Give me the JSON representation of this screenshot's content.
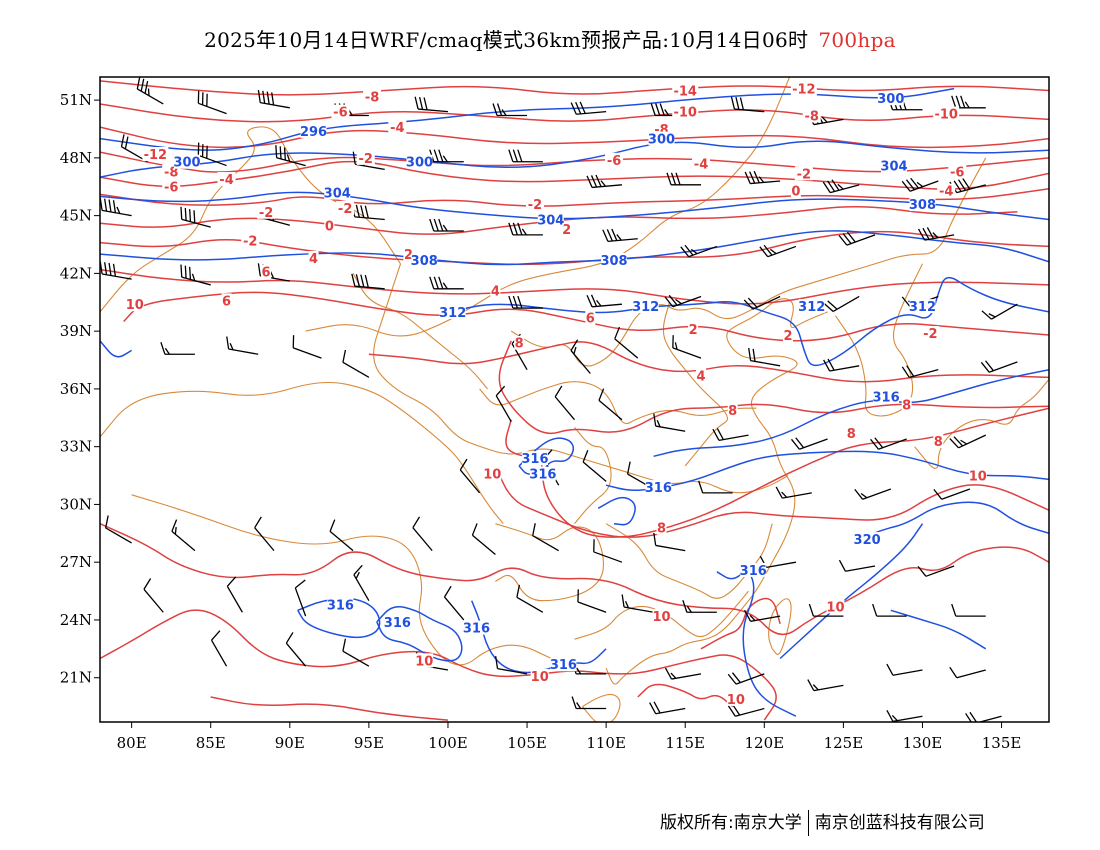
{
  "title": {
    "main": "2025年10月14日WRF/cmaq模式36km预报产品:10月14日06时",
    "level": "700hpa"
  },
  "colors": {
    "temperature": "#e04040",
    "height": "#2050e0",
    "border": "#d88a3a",
    "wind": "#000000",
    "level_text": "#e03030"
  },
  "axes": {
    "lon_labels": [
      "80E",
      "85E",
      "90E",
      "95E",
      "100E",
      "105E",
      "110E",
      "115E",
      "120E",
      "125E",
      "130E",
      "135E"
    ],
    "lon_values": [
      80,
      85,
      90,
      95,
      100,
      105,
      110,
      115,
      120,
      125,
      130,
      135
    ],
    "lat_labels": [
      "51N",
      "48N",
      "45N",
      "42N",
      "39N",
      "36N",
      "33N",
      "30N",
      "27N",
      "24N",
      "21N"
    ],
    "lat_values": [
      51,
      48,
      45,
      42,
      39,
      36,
      33,
      30,
      27,
      24,
      21
    ],
    "lon_range": [
      78,
      138
    ],
    "lat_range": [
      18.7,
      52.2
    ]
  },
  "temp_labels": [
    {
      "t": "-14",
      "lon": 115.0,
      "lat": 51.5
    },
    {
      "t": "-12",
      "lon": 122.5,
      "lat": 51.6
    },
    {
      "t": "-10",
      "lon": 115.0,
      "lat": 50.4
    },
    {
      "t": "-10",
      "lon": 131.5,
      "lat": 50.3
    },
    {
      "t": "-8",
      "lon": 95.2,
      "lat": 51.2
    },
    {
      "t": "-8",
      "lon": 123.0,
      "lat": 50.2
    },
    {
      "t": "-8",
      "lon": 113.5,
      "lat": 49.5
    },
    {
      "t": "-6",
      "lon": 93.2,
      "lat": 50.4
    },
    {
      "t": "-6",
      "lon": 110.5,
      "lat": 47.9
    },
    {
      "t": "-6",
      "lon": 132.2,
      "lat": 47.3
    },
    {
      "t": "-4",
      "lon": 96.8,
      "lat": 49.6
    },
    {
      "t": "-4",
      "lon": 86.0,
      "lat": 46.9
    },
    {
      "t": "-4",
      "lon": 116.0,
      "lat": 47.7
    },
    {
      "t": "-4",
      "lon": 131.5,
      "lat": 46.3
    },
    {
      "t": "-2",
      "lon": 94.8,
      "lat": 48.0
    },
    {
      "t": "-2",
      "lon": 93.5,
      "lat": 45.4
    },
    {
      "t": "-2",
      "lon": 105.5,
      "lat": 45.6
    },
    {
      "t": "-2",
      "lon": 122.5,
      "lat": 47.2
    },
    {
      "t": "-12",
      "lon": 81.5,
      "lat": 48.2
    },
    {
      "t": "-8",
      "lon": 82.5,
      "lat": 47.3
    },
    {
      "t": "-6",
      "lon": 82.5,
      "lat": 46.5
    },
    {
      "t": "-2",
      "lon": 88.5,
      "lat": 45.2
    },
    {
      "t": "-2",
      "lon": 87.5,
      "lat": 43.7
    },
    {
      "t": "0",
      "lon": 92.5,
      "lat": 44.5
    },
    {
      "t": "0",
      "lon": 122.0,
      "lat": 46.3
    },
    {
      "t": "2",
      "lon": 97.5,
      "lat": 43.0
    },
    {
      "t": "2",
      "lon": 107.5,
      "lat": 44.3
    },
    {
      "t": "2",
      "lon": 115.5,
      "lat": 39.1
    },
    {
      "t": "4",
      "lon": 91.5,
      "lat": 42.8
    },
    {
      "t": "4",
      "lon": 103.0,
      "lat": 41.1
    },
    {
      "t": "4",
      "lon": 116.0,
      "lat": 36.7
    },
    {
      "t": "6",
      "lon": 88.5,
      "lat": 42.1
    },
    {
      "t": "6",
      "lon": 86.0,
      "lat": 40.6
    },
    {
      "t": "6",
      "lon": 109.0,
      "lat": 39.7
    },
    {
      "t": "8",
      "lon": 104.5,
      "lat": 38.4
    },
    {
      "t": "8",
      "lon": 118.0,
      "lat": 34.9
    },
    {
      "t": "8",
      "lon": 125.5,
      "lat": 33.7
    },
    {
      "t": "8",
      "lon": 129.0,
      "lat": 35.2
    },
    {
      "t": "8",
      "lon": 131.0,
      "lat": 33.3
    },
    {
      "t": "8",
      "lon": 113.5,
      "lat": 28.8
    },
    {
      "t": "10",
      "lon": 80.2,
      "lat": 40.4
    },
    {
      "t": "10",
      "lon": 102.8,
      "lat": 31.6
    },
    {
      "t": "10",
      "lon": 133.5,
      "lat": 31.5
    },
    {
      "t": "10",
      "lon": 113.5,
      "lat": 24.2
    },
    {
      "t": "10",
      "lon": 124.5,
      "lat": 24.7
    },
    {
      "t": "10",
      "lon": 98.5,
      "lat": 21.9
    },
    {
      "t": "10",
      "lon": 105.8,
      "lat": 21.1
    },
    {
      "t": "10",
      "lon": 118.2,
      "lat": 19.9
    },
    {
      "t": "-2",
      "lon": 130.5,
      "lat": 38.9
    },
    {
      "t": "2",
      "lon": 121.5,
      "lat": 38.8
    }
  ],
  "height_labels": [
    {
      "t": "296",
      "lon": 91.5,
      "lat": 49.4
    },
    {
      "t": "300",
      "lon": 83.5,
      "lat": 47.8
    },
    {
      "t": "300",
      "lon": 98.2,
      "lat": 47.8
    },
    {
      "t": "300",
      "lon": 113.5,
      "lat": 49.0
    },
    {
      "t": "300",
      "lon": 128.0,
      "lat": 51.1
    },
    {
      "t": "304",
      "lon": 93.0,
      "lat": 46.2
    },
    {
      "t": "304",
      "lon": 106.5,
      "lat": 44.8
    },
    {
      "t": "304",
      "lon": 128.2,
      "lat": 47.6
    },
    {
      "t": "308",
      "lon": 98.5,
      "lat": 42.7
    },
    {
      "t": "308",
      "lon": 110.5,
      "lat": 42.7
    },
    {
      "t": "308",
      "lon": 130.0,
      "lat": 45.6
    },
    {
      "t": "312",
      "lon": 100.3,
      "lat": 40.0
    },
    {
      "t": "312",
      "lon": 112.5,
      "lat": 40.3
    },
    {
      "t": "312",
      "lon": 123.0,
      "lat": 40.3
    },
    {
      "t": "312",
      "lon": 130.0,
      "lat": 40.3
    },
    {
      "t": "316",
      "lon": 127.7,
      "lat": 35.6
    },
    {
      "t": "316",
      "lon": 105.5,
      "lat": 32.4
    },
    {
      "t": "316",
      "lon": 106.0,
      "lat": 31.6
    },
    {
      "t": "316",
      "lon": 113.3,
      "lat": 30.9
    },
    {
      "t": "316",
      "lon": 119.3,
      "lat": 26.6
    },
    {
      "t": "316",
      "lon": 93.2,
      "lat": 24.8
    },
    {
      "t": "316",
      "lon": 96.8,
      "lat": 23.9
    },
    {
      "t": "316",
      "lon": 101.8,
      "lat": 23.6
    },
    {
      "t": "316",
      "lon": 107.3,
      "lat": 21.7
    },
    {
      "t": "320",
      "lon": 126.5,
      "lat": 28.2
    }
  ],
  "wind_barbs": [
    {
      "lon": 82,
      "lat": 50.8,
      "dir": 300,
      "spd": 35
    },
    {
      "lon": 86,
      "lat": 50.3,
      "dir": 290,
      "spd": 30
    },
    {
      "lon": 90,
      "lat": 50.6,
      "dir": 280,
      "spd": 40
    },
    {
      "lon": 95,
      "lat": 50.2,
      "dir": 270,
      "spd": 35
    },
    {
      "lon": 100,
      "lat": 50.4,
      "dir": 275,
      "spd": 30
    },
    {
      "lon": 105,
      "lat": 50.2,
      "dir": 270,
      "spd": 25
    },
    {
      "lon": 110,
      "lat": 50.4,
      "dir": 265,
      "spd": 30
    },
    {
      "lon": 115,
      "lat": 50.2,
      "dir": 270,
      "spd": 35
    },
    {
      "lon": 120,
      "lat": 50.4,
      "dir": 275,
      "spd": 30
    },
    {
      "lon": 125,
      "lat": 50.0,
      "dir": 260,
      "spd": 35
    },
    {
      "lon": 130,
      "lat": 50.5,
      "dir": 270,
      "spd": 40
    },
    {
      "lon": 134,
      "lat": 50.6,
      "dir": 270,
      "spd": 35
    },
    {
      "lon": 81,
      "lat": 47.8,
      "dir": 300,
      "spd": 20
    },
    {
      "lon": 86,
      "lat": 47.6,
      "dir": 290,
      "spd": 30
    },
    {
      "lon": 91,
      "lat": 47.6,
      "dir": 285,
      "spd": 35
    },
    {
      "lon": 96,
      "lat": 47.4,
      "dir": 280,
      "spd": 30
    },
    {
      "lon": 101,
      "lat": 47.8,
      "dir": 270,
      "spd": 35
    },
    {
      "lon": 106,
      "lat": 47.8,
      "dir": 270,
      "spd": 30
    },
    {
      "lon": 111,
      "lat": 46.6,
      "dir": 265,
      "spd": 35
    },
    {
      "lon": 116,
      "lat": 46.6,
      "dir": 270,
      "spd": 30
    },
    {
      "lon": 121,
      "lat": 46.8,
      "dir": 265,
      "spd": 35
    },
    {
      "lon": 126,
      "lat": 46.6,
      "dir": 255,
      "spd": 35
    },
    {
      "lon": 131,
      "lat": 46.8,
      "dir": 250,
      "spd": 35
    },
    {
      "lon": 134,
      "lat": 46.6,
      "dir": 255,
      "spd": 40
    },
    {
      "lon": 80,
      "lat": 45.0,
      "dir": 280,
      "spd": 45
    },
    {
      "lon": 85,
      "lat": 44.4,
      "dir": 285,
      "spd": 40
    },
    {
      "lon": 90,
      "lat": 44.5,
      "dir": 285,
      "spd": 35
    },
    {
      "lon": 96,
      "lat": 44.8,
      "dir": 275,
      "spd": 40
    },
    {
      "lon": 101,
      "lat": 44.2,
      "dir": 270,
      "spd": 35
    },
    {
      "lon": 106,
      "lat": 44.0,
      "dir": 270,
      "spd": 35
    },
    {
      "lon": 112,
      "lat": 43.8,
      "dir": 265,
      "spd": 35
    },
    {
      "lon": 117,
      "lat": 43.4,
      "dir": 250,
      "spd": 25
    },
    {
      "lon": 122,
      "lat": 43.4,
      "dir": 250,
      "spd": 25
    },
    {
      "lon": 127,
      "lat": 44.0,
      "dir": 250,
      "spd": 30
    },
    {
      "lon": 132,
      "lat": 44.0,
      "dir": 260,
      "spd": 35
    },
    {
      "lon": 80,
      "lat": 41.7,
      "dir": 280,
      "spd": 40
    },
    {
      "lon": 85,
      "lat": 41.4,
      "dir": 285,
      "spd": 35
    },
    {
      "lon": 90,
      "lat": 41.6,
      "dir": 280,
      "spd": 35
    },
    {
      "lon": 96,
      "lat": 41.2,
      "dir": 275,
      "spd": 40
    },
    {
      "lon": 101,
      "lat": 41.2,
      "dir": 270,
      "spd": 35
    },
    {
      "lon": 106,
      "lat": 40.2,
      "dir": 270,
      "spd": 30
    },
    {
      "lon": 111,
      "lat": 40.4,
      "dir": 265,
      "spd": 25
    },
    {
      "lon": 116,
      "lat": 40.8,
      "dir": 250,
      "spd": 25
    },
    {
      "lon": 121,
      "lat": 40.8,
      "dir": 245,
      "spd": 20
    },
    {
      "lon": 126,
      "lat": 40.8,
      "dir": 240,
      "spd": 20
    },
    {
      "lon": 131,
      "lat": 40.8,
      "dir": 250,
      "spd": 15
    },
    {
      "lon": 136,
      "lat": 40.4,
      "dir": 240,
      "spd": 15
    },
    {
      "lon": 84,
      "lat": 37.8,
      "dir": 270,
      "spd": 15
    },
    {
      "lon": 88,
      "lat": 37.8,
      "dir": 280,
      "spd": 15
    },
    {
      "lon": 92,
      "lat": 37.6,
      "dir": 290,
      "spd": 10
    },
    {
      "lon": 95,
      "lat": 36.6,
      "dir": 300,
      "spd": 10
    },
    {
      "lon": 105,
      "lat": 37.0,
      "dir": 330,
      "spd": 15
    },
    {
      "lon": 109,
      "lat": 36.8,
      "dir": 320,
      "spd": 15
    },
    {
      "lon": 112,
      "lat": 37.6,
      "dir": 310,
      "spd": 10
    },
    {
      "lon": 116,
      "lat": 37.6,
      "dir": 290,
      "spd": 15
    },
    {
      "lon": 121,
      "lat": 37.2,
      "dir": 280,
      "spd": 20
    },
    {
      "lon": 126,
      "lat": 37.2,
      "dir": 260,
      "spd": 20
    },
    {
      "lon": 131,
      "lat": 37.0,
      "dir": 255,
      "spd": 20
    },
    {
      "lon": 136,
      "lat": 37.4,
      "dir": 250,
      "spd": 20
    },
    {
      "lon": 104,
      "lat": 34.3,
      "dir": 330,
      "spd": 10
    },
    {
      "lon": 108,
      "lat": 34.4,
      "dir": 320,
      "spd": 10
    },
    {
      "lon": 111,
      "lat": 34.4,
      "dir": 310,
      "spd": 10
    },
    {
      "lon": 115,
      "lat": 33.8,
      "dir": 280,
      "spd": 15
    },
    {
      "lon": 119,
      "lat": 33.6,
      "dir": 260,
      "spd": 20
    },
    {
      "lon": 124,
      "lat": 33.4,
      "dir": 250,
      "spd": 20
    },
    {
      "lon": 129,
      "lat": 33.4,
      "dir": 250,
      "spd": 20
    },
    {
      "lon": 134,
      "lat": 33.6,
      "dir": 245,
      "spd": 25
    },
    {
      "lon": 102,
      "lat": 30.6,
      "dir": 320,
      "spd": 10
    },
    {
      "lon": 107,
      "lat": 31.0,
      "dir": 330,
      "spd": 10
    },
    {
      "lon": 110,
      "lat": 31.2,
      "dir": 310,
      "spd": 10
    },
    {
      "lon": 113,
      "lat": 30.8,
      "dir": 300,
      "spd": 10
    },
    {
      "lon": 118,
      "lat": 30.6,
      "dir": 270,
      "spd": 10
    },
    {
      "lon": 123,
      "lat": 30.6,
      "dir": 260,
      "spd": 15
    },
    {
      "lon": 128,
      "lat": 30.8,
      "dir": 250,
      "spd": 15
    },
    {
      "lon": 133,
      "lat": 30.8,
      "dir": 250,
      "spd": 10
    },
    {
      "lon": 80,
      "lat": 28.0,
      "dir": 300,
      "spd": 10
    },
    {
      "lon": 84,
      "lat": 27.6,
      "dir": 310,
      "spd": 15
    },
    {
      "lon": 89,
      "lat": 27.6,
      "dir": 320,
      "spd": 10
    },
    {
      "lon": 94,
      "lat": 27.6,
      "dir": 310,
      "spd": 10
    },
    {
      "lon": 99,
      "lat": 27.6,
      "dir": 320,
      "spd": 10
    },
    {
      "lon": 103,
      "lat": 27.4,
      "dir": 310,
      "spd": 10
    },
    {
      "lon": 107,
      "lat": 27.6,
      "dir": 300,
      "spd": 10
    },
    {
      "lon": 111,
      "lat": 27.0,
      "dir": 290,
      "spd": 10
    },
    {
      "lon": 115,
      "lat": 27.6,
      "dir": 280,
      "spd": 10
    },
    {
      "lon": 122,
      "lat": 27.0,
      "dir": 260,
      "spd": 10
    },
    {
      "lon": 127,
      "lat": 26.8,
      "dir": 260,
      "spd": 10
    },
    {
      "lon": 132,
      "lat": 26.8,
      "dir": 250,
      "spd": 10
    },
    {
      "lon": 82,
      "lat": 24.4,
      "dir": 320,
      "spd": 10
    },
    {
      "lon": 87,
      "lat": 24.4,
      "dir": 330,
      "spd": 10
    },
    {
      "lon": 91,
      "lat": 24.2,
      "dir": 340,
      "spd": 10
    },
    {
      "lon": 95,
      "lat": 25.0,
      "dir": 330,
      "spd": 15
    },
    {
      "lon": 101,
      "lat": 24.0,
      "dir": 320,
      "spd": 10
    },
    {
      "lon": 106,
      "lat": 24.4,
      "dir": 300,
      "spd": 10
    },
    {
      "lon": 110,
      "lat": 24.4,
      "dir": 290,
      "spd": 10
    },
    {
      "lon": 113,
      "lat": 24.4,
      "dir": 280,
      "spd": 15
    },
    {
      "lon": 117,
      "lat": 24.4,
      "dir": 270,
      "spd": 15
    },
    {
      "lon": 121,
      "lat": 24.2,
      "dir": 260,
      "spd": 15
    },
    {
      "lon": 125,
      "lat": 24.2,
      "dir": 270,
      "spd": 10
    },
    {
      "lon": 129,
      "lat": 24.2,
      "dir": 270,
      "spd": 10
    },
    {
      "lon": 134,
      "lat": 24.2,
      "dir": 270,
      "spd": 10
    },
    {
      "lon": 86,
      "lat": 21.6,
      "dir": 330,
      "spd": 10
    },
    {
      "lon": 91,
      "lat": 21.6,
      "dir": 320,
      "spd": 10
    },
    {
      "lon": 95,
      "lat": 21.6,
      "dir": 300,
      "spd": 10
    },
    {
      "lon": 100,
      "lat": 21.4,
      "dir": 280,
      "spd": 10
    },
    {
      "lon": 105,
      "lat": 21.2,
      "dir": 280,
      "spd": 10
    },
    {
      "lon": 110,
      "lat": 21.2,
      "dir": 270,
      "spd": 15
    },
    {
      "lon": 116,
      "lat": 21.2,
      "dir": 260,
      "spd": 15
    },
    {
      "lon": 120,
      "lat": 21.2,
      "dir": 250,
      "spd": 20
    },
    {
      "lon": 125,
      "lat": 20.6,
      "dir": 260,
      "spd": 15
    },
    {
      "lon": 130,
      "lat": 21.4,
      "dir": 260,
      "spd": 10
    },
    {
      "lon": 134,
      "lat": 21.4,
      "dir": 255,
      "spd": 10
    },
    {
      "lon": 110,
      "lat": 19.4,
      "dir": 270,
      "spd": 15
    },
    {
      "lon": 115,
      "lat": 19.4,
      "dir": 260,
      "spd": 20
    },
    {
      "lon": 120,
      "lat": 19.4,
      "dir": 255,
      "spd": 20
    },
    {
      "lon": 130,
      "lat": 19.0,
      "dir": 260,
      "spd": 15
    },
    {
      "lon": 135,
      "lat": 19.0,
      "dir": 255,
      "spd": 20
    }
  ],
  "footer": {
    "left": "版权所有:南京大学",
    "right": "南京创蓝科技有限公司"
  }
}
